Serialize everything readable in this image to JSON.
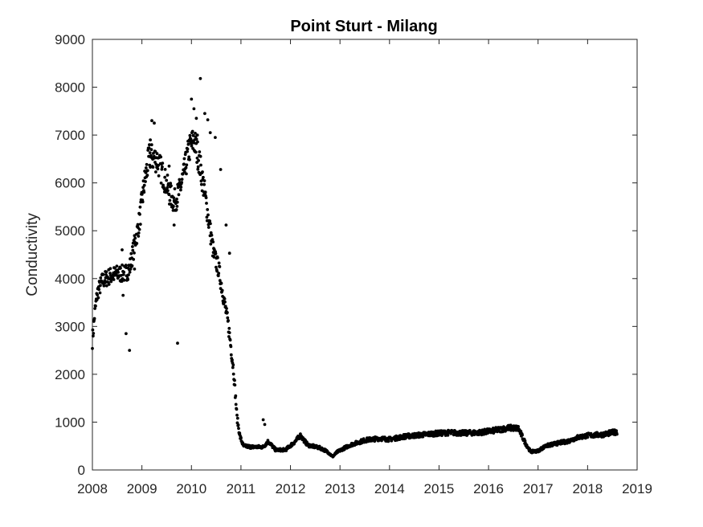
{
  "colors": {
    "marker": "#000000",
    "axis": "#262626",
    "background": "#ffffff"
  },
  "chart_data": {
    "type": "scatter",
    "title": "Point Sturt - Milang",
    "xlabel": "",
    "ylabel": "Conductivity",
    "xlim": [
      2008,
      2019
    ],
    "ylim": [
      0,
      9000
    ],
    "x_ticks": [
      "2008",
      "2009",
      "2010",
      "2011",
      "2012",
      "2013",
      "2014",
      "2015",
      "2016",
      "2017",
      "2018",
      "2019"
    ],
    "y_ticks": [
      "0",
      "1000",
      "2000",
      "3000",
      "4000",
      "5000",
      "6000",
      "7000",
      "8000",
      "9000"
    ],
    "grid": false,
    "legend": "none",
    "series": [
      {
        "trend": [
          [
            2008.0,
            2700
          ],
          [
            2008.05,
            3300
          ],
          [
            2008.1,
            3700
          ],
          [
            2008.2,
            3950
          ],
          [
            2008.35,
            4050
          ],
          [
            2008.5,
            4100
          ],
          [
            2008.65,
            4100
          ],
          [
            2008.75,
            4200
          ],
          [
            2008.85,
            4700
          ],
          [
            2008.95,
            5200
          ],
          [
            2009.05,
            6000
          ],
          [
            2009.15,
            6550
          ],
          [
            2009.3,
            6500
          ],
          [
            2009.45,
            6100
          ],
          [
            2009.55,
            5800
          ],
          [
            2009.65,
            5600
          ],
          [
            2009.75,
            5800
          ],
          [
            2009.85,
            6200
          ],
          [
            2009.95,
            6700
          ],
          [
            2010.05,
            6900
          ],
          [
            2010.15,
            6500
          ],
          [
            2010.25,
            5900
          ],
          [
            2010.35,
            5200
          ],
          [
            2010.45,
            4500
          ],
          [
            2010.55,
            4200
          ],
          [
            2010.65,
            3600
          ],
          [
            2010.75,
            3000
          ],
          [
            2010.85,
            2100
          ],
          [
            2010.92,
            1100
          ],
          [
            2010.98,
            700
          ],
          [
            2011.05,
            500
          ],
          [
            2011.25,
            480
          ],
          [
            2011.45,
            480
          ],
          [
            2011.55,
            600
          ],
          [
            2011.7,
            420
          ],
          [
            2011.9,
            420
          ],
          [
            2012.1,
            600
          ],
          [
            2012.2,
            720
          ],
          [
            2012.35,
            520
          ],
          [
            2012.6,
            460
          ],
          [
            2012.75,
            380
          ],
          [
            2012.85,
            280
          ],
          [
            2012.95,
            380
          ],
          [
            2013.2,
            520
          ],
          [
            2013.5,
            620
          ],
          [
            2013.8,
            660
          ],
          [
            2014.0,
            640
          ],
          [
            2014.3,
            700
          ],
          [
            2014.6,
            730
          ],
          [
            2014.9,
            760
          ],
          [
            2015.2,
            780
          ],
          [
            2015.5,
            770
          ],
          [
            2015.8,
            780
          ],
          [
            2016.1,
            820
          ],
          [
            2016.4,
            880
          ],
          [
            2016.6,
            870
          ],
          [
            2016.75,
            550
          ],
          [
            2016.85,
            380
          ],
          [
            2017.0,
            400
          ],
          [
            2017.15,
            500
          ],
          [
            2017.4,
            560
          ],
          [
            2017.6,
            600
          ],
          [
            2017.8,
            680
          ],
          [
            2018.0,
            720
          ],
          [
            2018.3,
            740
          ],
          [
            2018.6,
            800
          ]
        ],
        "outliers": [
          [
            2008.68,
            2850
          ],
          [
            2008.75,
            2500
          ],
          [
            2009.72,
            2650
          ],
          [
            2009.2,
            7300
          ],
          [
            2009.25,
            7250
          ],
          [
            2009.17,
            6900
          ],
          [
            2010.0,
            7750
          ],
          [
            2010.05,
            7550
          ],
          [
            2010.1,
            7350
          ],
          [
            2010.18,
            8180
          ],
          [
            2010.27,
            7450
          ],
          [
            2010.33,
            7320
          ],
          [
            2010.48,
            6950
          ],
          [
            2010.59,
            6280
          ],
          [
            2010.7,
            5120
          ],
          [
            2010.77,
            4530
          ],
          [
            2011.45,
            1050
          ],
          [
            2011.48,
            950
          ],
          [
            2008.85,
            4200
          ],
          [
            2008.6,
            4600
          ],
          [
            2008.62,
            3650
          ],
          [
            2009.65,
            5120
          ],
          [
            2009.55,
            6350
          ],
          [
            2010.38,
            7050
          ],
          [
            2010.12,
            7000
          ]
        ]
      }
    ]
  }
}
